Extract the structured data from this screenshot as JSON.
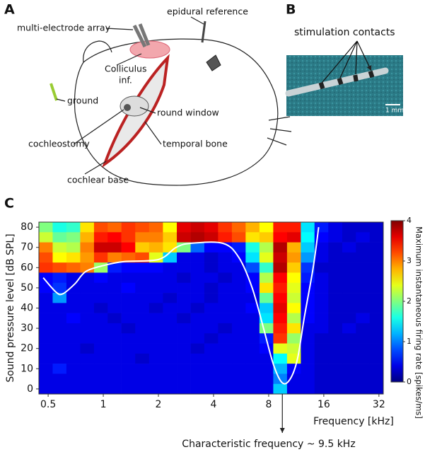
{
  "panels": {
    "a": {
      "label": "A",
      "epidural": "epidural reference",
      "array": "multi-electrode array",
      "colliculus": [
        "Colliculus",
        "inf."
      ],
      "ground": "ground",
      "round_window": "round window",
      "cochleostomy": "cochleostomy",
      "temporal_bone": "temporal bone",
      "cochlear_base": "cochlear base"
    },
    "b": {
      "label": "B",
      "contacts": "stimulation contacts",
      "scale": "1 mm"
    },
    "c": {
      "label": "C"
    }
  },
  "chart_data": {
    "type": "heatmap",
    "xlabel": "Frequency [kHz]",
    "ylabel": "Sound pressure level [dB SPL]",
    "colorbar_label": "Maximum instantaneous firing rate [spikes/ms]",
    "log_x": true,
    "colormap": "jet",
    "xlim": [
      0.445,
      33.8
    ],
    "xticks": [
      0.5,
      1,
      2,
      4,
      8,
      16,
      32
    ],
    "ylim": [
      -2.5,
      82.5
    ],
    "yticks": [
      0,
      10,
      20,
      30,
      40,
      50,
      60,
      70,
      80
    ],
    "zlim": [
      0,
      4
    ],
    "zticks": [
      0,
      1,
      2,
      3,
      4
    ],
    "x": [
      0.485,
      0.577,
      0.686,
      0.816,
      0.97,
      1.15,
      1.37,
      1.63,
      1.94,
      2.31,
      2.75,
      3.27,
      3.88,
      4.62,
      5.49,
      6.53,
      7.77,
      9.24,
      10.99,
      13.07,
      15.5,
      18.5,
      22.0,
      26.1,
      31.1
    ],
    "y": [
      80,
      75,
      70,
      65,
      60,
      55,
      50,
      45,
      40,
      35,
      30,
      25,
      20,
      15,
      10,
      5,
      0
    ],
    "z": [
      [
        2.0,
        1.6,
        1.7,
        2.6,
        3.2,
        3.1,
        3.3,
        3.2,
        3.1,
        2.5,
        3.6,
        3.7,
        3.6,
        3.3,
        3.1,
        2.8,
        2.5,
        3.4,
        3.4,
        1.4,
        0.6,
        0.4,
        0.3,
        0.3,
        0.3
      ],
      [
        2.3,
        1.9,
        2.0,
        2.8,
        3.4,
        3.5,
        3.3,
        3.0,
        3.0,
        2.7,
        3.7,
        3.8,
        3.7,
        3.4,
        3.2,
        2.6,
        2.7,
        3.5,
        3.6,
        1.5,
        0.5,
        0.4,
        0.3,
        0.4,
        0.3
      ],
      [
        3.0,
        2.3,
        2.2,
        3.0,
        3.7,
        3.7,
        3.5,
        2.7,
        2.8,
        2.6,
        2.0,
        0.9,
        0.5,
        0.5,
        0.6,
        1.6,
        2.2,
        3.8,
        2.8,
        1.3,
        0.4,
        0.3,
        0.4,
        0.3,
        0.3
      ],
      [
        3.2,
        2.5,
        2.6,
        2.9,
        3.3,
        3.0,
        3.1,
        3.2,
        2.4,
        1.3,
        0.4,
        0.4,
        0.3,
        0.4,
        0.5,
        1.4,
        2.4,
        3.7,
        2.9,
        1.1,
        0.4,
        0.3,
        0.3,
        0.3,
        0.3
      ],
      [
        3.3,
        3.2,
        3.1,
        3.0,
        2.1,
        0.6,
        0.5,
        0.5,
        0.5,
        0.4,
        0.4,
        0.4,
        0.3,
        0.4,
        0.4,
        0.8,
        1.7,
        3.8,
        2.7,
        0.7,
        0.3,
        0.3,
        0.3,
        0.3,
        0.3
      ],
      [
        0.5,
        0.6,
        0.4,
        0.4,
        0.5,
        0.4,
        0.4,
        0.4,
        0.4,
        0.4,
        0.3,
        0.4,
        0.4,
        0.3,
        0.4,
        0.5,
        2.2,
        3.5,
        2.5,
        0.6,
        0.4,
        0.3,
        0.3,
        0.3,
        0.3
      ],
      [
        0.5,
        0.7,
        0.4,
        0.4,
        0.4,
        0.4,
        0.5,
        0.4,
        0.4,
        0.4,
        0.4,
        0.4,
        0.3,
        0.4,
        0.4,
        0.5,
        2.6,
        3.4,
        2.4,
        0.5,
        0.4,
        0.3,
        0.3,
        0.3,
        0.3
      ],
      [
        0.4,
        1.1,
        0.4,
        0.4,
        0.4,
        0.4,
        0.4,
        0.4,
        0.4,
        0.3,
        0.4,
        0.4,
        0.3,
        0.4,
        0.4,
        0.4,
        1.9,
        3.5,
        2.3,
        0.5,
        0.4,
        0.3,
        0.3,
        0.3,
        0.3
      ],
      [
        0.4,
        0.4,
        0.4,
        0.4,
        0.3,
        0.4,
        0.4,
        0.4,
        0.3,
        0.4,
        0.4,
        0.3,
        0.4,
        0.4,
        0.4,
        0.5,
        1.3,
        3.6,
        2.5,
        0.5,
        0.4,
        0.3,
        0.3,
        0.3,
        0.3
      ],
      [
        0.4,
        0.4,
        0.5,
        0.4,
        0.4,
        0.3,
        0.4,
        0.4,
        0.4,
        0.4,
        0.3,
        0.4,
        0.4,
        0.4,
        0.4,
        0.4,
        1.4,
        3.5,
        2.2,
        0.5,
        0.4,
        0.3,
        0.3,
        0.4,
        0.3
      ],
      [
        0.4,
        0.4,
        0.4,
        0.4,
        0.4,
        0.4,
        0.3,
        0.4,
        0.4,
        0.4,
        0.4,
        0.4,
        0.4,
        0.3,
        0.4,
        0.4,
        2.0,
        3.4,
        2.6,
        0.4,
        0.4,
        0.3,
        0.4,
        0.3,
        0.3
      ],
      [
        0.4,
        0.4,
        0.4,
        0.4,
        0.4,
        0.4,
        0.4,
        0.4,
        0.4,
        0.4,
        0.4,
        0.4,
        0.3,
        0.4,
        0.4,
        0.4,
        0.6,
        3.3,
        2.1,
        0.4,
        0.3,
        0.3,
        0.3,
        0.3,
        0.3
      ],
      [
        0.4,
        0.4,
        0.4,
        0.3,
        0.4,
        0.4,
        0.4,
        0.4,
        0.4,
        0.4,
        0.4,
        0.3,
        0.4,
        0.4,
        0.4,
        0.4,
        0.5,
        2.4,
        2.3,
        0.4,
        0.3,
        0.3,
        0.3,
        0.3,
        0.3
      ],
      [
        0.4,
        0.4,
        0.4,
        0.4,
        0.4,
        0.4,
        0.4,
        0.3,
        0.4,
        0.4,
        0.4,
        0.4,
        0.4,
        0.4,
        0.4,
        0.4,
        0.4,
        1.5,
        2.4,
        0.4,
        0.3,
        0.3,
        0.3,
        0.3,
        0.3
      ],
      [
        0.4,
        0.6,
        0.4,
        0.4,
        0.4,
        0.4,
        0.4,
        0.4,
        0.4,
        0.4,
        0.4,
        0.4,
        0.4,
        0.4,
        0.4,
        0.4,
        0.4,
        1.2,
        0.5,
        0.4,
        0.3,
        0.3,
        0.3,
        0.3,
        0.3
      ],
      [
        0.4,
        0.4,
        0.4,
        0.4,
        0.4,
        0.4,
        0.4,
        0.4,
        0.4,
        0.4,
        0.4,
        0.4,
        0.4,
        0.4,
        0.4,
        0.4,
        0.4,
        1.0,
        0.4,
        0.4,
        0.3,
        0.3,
        0.3,
        0.3,
        0.3
      ],
      [
        0.4,
        0.4,
        0.4,
        0.4,
        0.4,
        0.4,
        0.4,
        0.4,
        0.4,
        0.4,
        0.4,
        0.4,
        0.4,
        0.4,
        0.4,
        0.4,
        0.4,
        1.3,
        0.4,
        0.4,
        0.3,
        0.3,
        0.3,
        0.3,
        0.3
      ]
    ],
    "threshold_curve": {
      "color": "#ffffff",
      "x": [
        0.47,
        0.55,
        0.6,
        0.7,
        0.8,
        1,
        1.3,
        2,
        2.5,
        3,
        4.5,
        5.5,
        6.5,
        7.5,
        8.5,
        9.5,
        10.5,
        11.5,
        12.5,
        14,
        15
      ],
      "y": [
        55,
        48,
        47,
        52,
        58,
        61,
        63,
        64,
        70,
        72,
        72,
        65,
        50,
        30,
        12,
        3,
        5,
        15,
        35,
        60,
        80
      ]
    },
    "annotation": {
      "text": "Characteristic frequency ~ 9.5 kHz",
      "x": 9.5
    }
  }
}
